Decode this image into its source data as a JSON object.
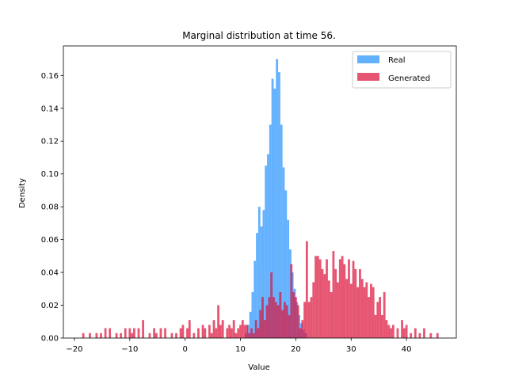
{
  "chart_data": {
    "type": "histogram",
    "title": "Marginal distribution at time 56.",
    "xlabel": "Value",
    "ylabel": "Density",
    "xlim": [
      -22,
      49
    ],
    "ylim": [
      0,
      0.178
    ],
    "xticks": [
      -20,
      -10,
      0,
      10,
      20,
      30,
      40
    ],
    "yticks": [
      0.0,
      0.02,
      0.04,
      0.06,
      0.08,
      0.1,
      0.12,
      0.14,
      0.16
    ],
    "legend_position": "top-right",
    "series": [
      {
        "name": "Real",
        "color": "#4da6ff",
        "alpha": 0.88,
        "bins": [
          [
            10.8,
            11.2,
            0.003
          ],
          [
            11.2,
            11.6,
            0.008
          ],
          [
            11.6,
            12.0,
            0.016
          ],
          [
            12.0,
            12.4,
            0.028
          ],
          [
            12.4,
            12.8,
            0.047
          ],
          [
            12.8,
            13.2,
            0.064
          ],
          [
            13.2,
            13.6,
            0.08
          ],
          [
            13.6,
            14.0,
            0.068
          ],
          [
            14.0,
            14.4,
            0.078
          ],
          [
            14.4,
            14.8,
            0.105
          ],
          [
            14.8,
            15.2,
            0.112
          ],
          [
            15.2,
            15.6,
            0.13
          ],
          [
            15.6,
            16.0,
            0.158
          ],
          [
            16.0,
            16.4,
            0.152
          ],
          [
            16.4,
            16.8,
            0.17
          ],
          [
            16.8,
            17.2,
            0.162
          ],
          [
            17.2,
            17.6,
            0.13
          ],
          [
            17.6,
            18.0,
            0.104
          ],
          [
            18.0,
            18.4,
            0.09
          ],
          [
            18.4,
            18.8,
            0.072
          ],
          [
            18.8,
            19.2,
            0.054
          ],
          [
            19.2,
            19.6,
            0.04
          ],
          [
            19.6,
            20.0,
            0.03
          ],
          [
            20.0,
            20.4,
            0.022
          ],
          [
            20.4,
            20.8,
            0.014
          ],
          [
            20.8,
            21.2,
            0.009
          ],
          [
            21.2,
            21.6,
            0.005
          ],
          [
            21.6,
            22.0,
            0.003
          ]
        ]
      },
      {
        "name": "Generated",
        "color": "#dc143c",
        "alpha": 0.72,
        "bins": [
          [
            -18.6,
            -18.2,
            0.003
          ],
          [
            -17.4,
            -17.0,
            0.003
          ],
          [
            -16.2,
            -15.8,
            0.003
          ],
          [
            -15.4,
            -15.0,
            0.003
          ],
          [
            -14.6,
            -14.2,
            0.006
          ],
          [
            -13.8,
            -13.4,
            0.006
          ],
          [
            -12.6,
            -12.2,
            0.003
          ],
          [
            -11.8,
            -11.4,
            0.003
          ],
          [
            -11.0,
            -10.6,
            0.006
          ],
          [
            -10.2,
            -9.8,
            0.006
          ],
          [
            -9.8,
            -9.4,
            0.003
          ],
          [
            -9.4,
            -9.0,
            0.006
          ],
          [
            -8.6,
            -8.2,
            0.006
          ],
          [
            -7.8,
            -7.4,
            0.011
          ],
          [
            -6.6,
            -6.2,
            0.003
          ],
          [
            -5.8,
            -5.4,
            0.006
          ],
          [
            -5.4,
            -5.0,
            0.003
          ],
          [
            -4.6,
            -4.2,
            0.006
          ],
          [
            -3.8,
            -3.4,
            0.006
          ],
          [
            -2.6,
            -2.2,
            0.003
          ],
          [
            -1.8,
            -1.4,
            0.003
          ],
          [
            -1.0,
            -0.6,
            0.006
          ],
          [
            -0.6,
            -0.2,
            0.008
          ],
          [
            0.2,
            0.6,
            0.006
          ],
          [
            0.6,
            1.0,
            0.011
          ],
          [
            1.4,
            1.8,
            0.003
          ],
          [
            2.2,
            2.6,
            0.006
          ],
          [
            3.0,
            3.4,
            0.008
          ],
          [
            3.4,
            3.8,
            0.006
          ],
          [
            4.2,
            4.6,
            0.008
          ],
          [
            4.6,
            5.0,
            0.003
          ],
          [
            5.0,
            5.4,
            0.011
          ],
          [
            5.4,
            5.8,
            0.006
          ],
          [
            5.8,
            6.2,
            0.02
          ],
          [
            6.2,
            6.6,
            0.008
          ],
          [
            6.6,
            7.0,
            0.011
          ],
          [
            7.4,
            7.8,
            0.006
          ],
          [
            7.8,
            8.2,
            0.008
          ],
          [
            8.2,
            8.6,
            0.006
          ],
          [
            8.6,
            9.0,
            0.011
          ],
          [
            9.0,
            9.4,
            0.003
          ],
          [
            9.4,
            9.8,
            0.006
          ],
          [
            9.8,
            10.2,
            0.008
          ],
          [
            10.2,
            10.6,
            0.011
          ],
          [
            10.6,
            11.0,
            0.008
          ],
          [
            11.0,
            11.4,
            0.008
          ],
          [
            11.4,
            11.8,
            0.003
          ],
          [
            11.8,
            12.2,
            0.006
          ],
          [
            12.2,
            12.6,
            0.003
          ],
          [
            12.6,
            13.0,
            0.011
          ],
          [
            13.0,
            13.4,
            0.006
          ],
          [
            13.4,
            13.8,
            0.017
          ],
          [
            13.8,
            14.2,
            0.025
          ],
          [
            14.2,
            14.6,
            0.011
          ],
          [
            14.6,
            15.0,
            0.02
          ],
          [
            15.0,
            15.4,
            0.025
          ],
          [
            15.4,
            15.8,
            0.04
          ],
          [
            15.8,
            16.2,
            0.025
          ],
          [
            16.2,
            16.6,
            0.022
          ],
          [
            16.6,
            17.0,
            0.02
          ],
          [
            17.0,
            17.4,
            0.028
          ],
          [
            17.4,
            17.8,
            0.017
          ],
          [
            17.8,
            18.2,
            0.022
          ],
          [
            18.2,
            18.6,
            0.02
          ],
          [
            18.6,
            19.0,
            0.014
          ],
          [
            19.0,
            19.4,
            0.045
          ],
          [
            19.4,
            19.8,
            0.028
          ],
          [
            19.8,
            20.2,
            0.025
          ],
          [
            20.2,
            20.6,
            0.02
          ],
          [
            20.6,
            21.0,
            0.006
          ],
          [
            21.0,
            21.4,
            0.011
          ],
          [
            21.4,
            21.8,
            0.022
          ],
          [
            21.8,
            22.2,
            0.059
          ],
          [
            22.2,
            22.6,
            0.022
          ],
          [
            22.6,
            23.0,
            0.025
          ],
          [
            23.0,
            23.4,
            0.034
          ],
          [
            23.4,
            23.8,
            0.05
          ],
          [
            23.8,
            24.2,
            0.05
          ],
          [
            24.2,
            24.6,
            0.048
          ],
          [
            24.6,
            25.0,
            0.042
          ],
          [
            25.0,
            25.4,
            0.039
          ],
          [
            25.4,
            25.8,
            0.048
          ],
          [
            25.8,
            26.2,
            0.035
          ],
          [
            26.2,
            26.6,
            0.028
          ],
          [
            26.6,
            27.0,
            0.053
          ],
          [
            27.0,
            27.4,
            0.042
          ],
          [
            27.4,
            27.8,
            0.034
          ],
          [
            27.8,
            28.2,
            0.048
          ],
          [
            28.2,
            28.6,
            0.05
          ],
          [
            28.6,
            29.0,
            0.045
          ],
          [
            29.0,
            29.4,
            0.036
          ],
          [
            29.4,
            29.8,
            0.048
          ],
          [
            29.8,
            30.2,
            0.033
          ],
          [
            30.2,
            30.6,
            0.047
          ],
          [
            30.6,
            31.0,
            0.042
          ],
          [
            31.0,
            31.4,
            0.031
          ],
          [
            31.4,
            31.8,
            0.042
          ],
          [
            31.8,
            32.2,
            0.036
          ],
          [
            32.2,
            32.6,
            0.031
          ],
          [
            32.6,
            33.0,
            0.034
          ],
          [
            33.0,
            33.4,
            0.025
          ],
          [
            33.4,
            33.8,
            0.033
          ],
          [
            33.8,
            34.2,
            0.031
          ],
          [
            34.2,
            34.6,
            0.014
          ],
          [
            34.6,
            35.0,
            0.022
          ],
          [
            35.0,
            35.4,
            0.025
          ],
          [
            35.4,
            35.8,
            0.014
          ],
          [
            35.8,
            36.2,
            0.028
          ],
          [
            36.2,
            36.6,
            0.011
          ],
          [
            36.6,
            37.0,
            0.008
          ],
          [
            37.0,
            37.4,
            0.006
          ],
          [
            37.4,
            37.8,
            0.008
          ],
          [
            38.2,
            38.6,
            0.006
          ],
          [
            39.0,
            39.4,
            0.011
          ],
          [
            39.4,
            39.8,
            0.006
          ],
          [
            39.8,
            40.2,
            0.008
          ],
          [
            40.6,
            41.0,
            0.003
          ],
          [
            41.4,
            41.8,
            0.006
          ],
          [
            42.2,
            42.6,
            0.003
          ],
          [
            43.0,
            43.4,
            0.006
          ],
          [
            44.2,
            44.6,
            0.003
          ],
          [
            45.4,
            45.8,
            0.003
          ]
        ]
      }
    ]
  }
}
